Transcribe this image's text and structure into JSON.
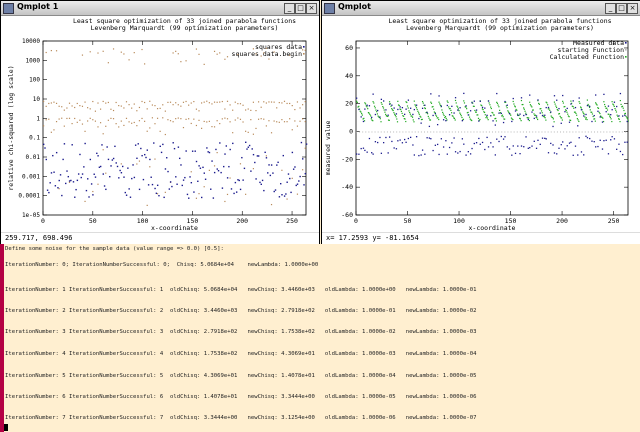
{
  "window1": {
    "title": "Qmplot 1",
    "status": "259.717,  698.496",
    "chart_data": {
      "type": "scatter",
      "title": "Least square optimization of 33 joined parabola functions",
      "subtitle": "Levenberg Marquardt (99 optimization parameters)",
      "xlabel": "x-coordinate",
      "ylabel": "relative chi-squared (log scale)",
      "yscale": "log",
      "xlim": [
        0,
        264
      ],
      "ylim": [
        1e-05,
        10000
      ],
      "xticks": [
        "0",
        "50",
        "100",
        "150",
        "200",
        "250"
      ],
      "yticks": [
        "10000",
        "1000",
        "100",
        "10",
        "1",
        "0.1",
        "0.01",
        "0.001",
        "0.0001",
        "1e-05"
      ],
      "legend": [
        "squares data",
        "squares data.begin"
      ],
      "legend_position": "top-right",
      "series_colors": [
        "#1a1a8c",
        "#b88a5a"
      ],
      "series": [
        {
          "name": "squares data",
          "values_description_range": [
            0.0001,
            0.1
          ]
        },
        {
          "name": "squares data.begin",
          "values_description_range": [
            5e-05,
            3000
          ]
        }
      ]
    }
  },
  "window2": {
    "title": "Qmplot",
    "status": "x=    17.2593 y=    -81.1654",
    "chart_data": {
      "type": "scatter",
      "title": "Least square optimization of 33 joined parabola functions",
      "subtitle": "Levenberg Marquardt (99 optimization parameters)",
      "xlabel": "x-coordinate",
      "ylabel": "measured value",
      "xlim": [
        0,
        264
      ],
      "ylim": [
        -60,
        65
      ],
      "xticks": [
        "0",
        "50",
        "100",
        "150",
        "200",
        "250"
      ],
      "yticks": [
        "60",
        "40",
        "20",
        "0",
        "-20",
        "-40",
        "-60"
      ],
      "legend": [
        "Measured data",
        "starting Function",
        "Calculated Function"
      ],
      "legend_position": "top-right",
      "series_colors": [
        "#1a1a8c",
        "#b8b8b8",
        "#22aa22"
      ]
    }
  },
  "terminal": {
    "lines": [
      "Define some noise for the sample data (value range => 0.0) [0.5]:",
      "IterationNumber: 0; IterationNumberSuccessful: 0;  Chisq: 5.0684e+04    newLambda: 1.0000e+00",
      "IterationNumber: 1 IterationNumberSuccessful: 1  oldChisq: 5.0684e+04   newChisq: 3.4460e+03   oldLambda: 1.0000e+00   newLambda: 1.0000e-01",
      "IterationNumber: 2 IterationNumberSuccessful: 2  oldChisq: 3.4460e+03   newChisq: 2.7918e+02   oldLambda: 1.0000e-01   newLambda: 1.0000e-02",
      "IterationNumber: 3 IterationNumberSuccessful: 3  oldChisq: 2.7918e+02   newChisq: 1.7538e+02   oldLambda: 1.0000e-02   newLambda: 1.0000e-03",
      "IterationNumber: 4 IterationNumberSuccessful: 4  oldChisq: 1.7538e+02   newChisq: 4.3069e+01   oldLambda: 1.0000e-03   newLambda: 1.0000e-04",
      "IterationNumber: 5 IterationNumberSuccessful: 5  oldChisq: 4.3069e+01   newChisq: 1.4078e+01   oldLambda: 1.0000e-04   newLambda: 1.0000e-05",
      "IterationNumber: 6 IterationNumberSuccessful: 6  oldChisq: 1.4078e+01   newChisq: 3.3444e+00   oldLambda: 1.0000e-05   newLambda: 1.0000e-06",
      "IterationNumber: 7 IterationNumberSuccessful: 7  oldChisq: 3.3444e+00   newChisq: 3.1254e+00   oldLambda: 1.0000e-06   newLambda: 1.0000e-07"
    ]
  }
}
